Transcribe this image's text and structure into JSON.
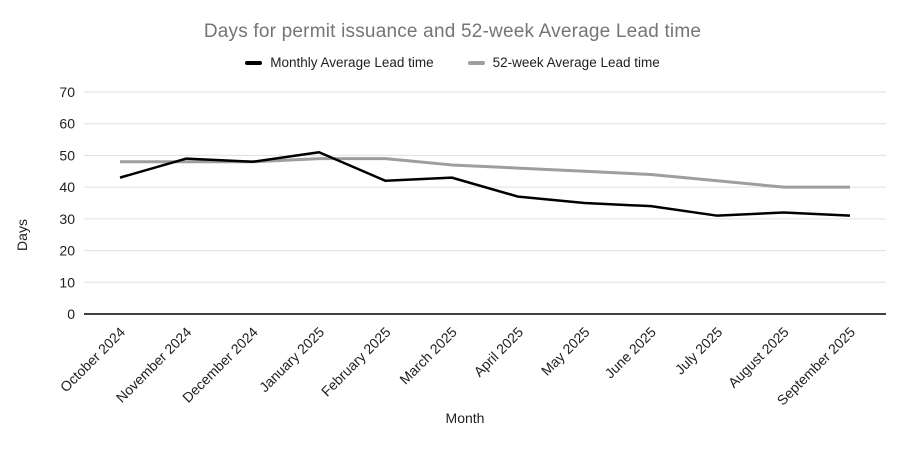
{
  "chart_data": {
    "type": "line",
    "title": "Days for permit issuance and 52-week Average Lead time",
    "xlabel": "Month",
    "ylabel": "Days",
    "ylim": [
      0,
      70
    ],
    "y_ticks": [
      0,
      10,
      20,
      30,
      40,
      50,
      60,
      70
    ],
    "grid": true,
    "legend_position": "top",
    "categories": [
      "October 2024",
      "November 2024",
      "December 2024",
      "January 2025",
      "February 2025",
      "March 2025",
      "April 2025",
      "May 2025",
      "June 2025",
      "July 2025",
      "August 2025",
      "September 2025"
    ],
    "series": [
      {
        "name": "Monthly Average Lead time",
        "color": "#000000",
        "values": [
          43,
          49,
          48,
          51,
          42,
          43,
          37,
          35,
          34,
          31,
          32,
          31
        ]
      },
      {
        "name": "52-week Average Lead time",
        "color": "#9e9e9e",
        "values": [
          48,
          48,
          48,
          49,
          49,
          47,
          46,
          45,
          44,
          42,
          40,
          40
        ]
      }
    ]
  },
  "colors": {
    "title": "#757575",
    "text": "#212121",
    "grid": "#e0e0e0",
    "axis": "#000000",
    "background": "#ffffff"
  }
}
